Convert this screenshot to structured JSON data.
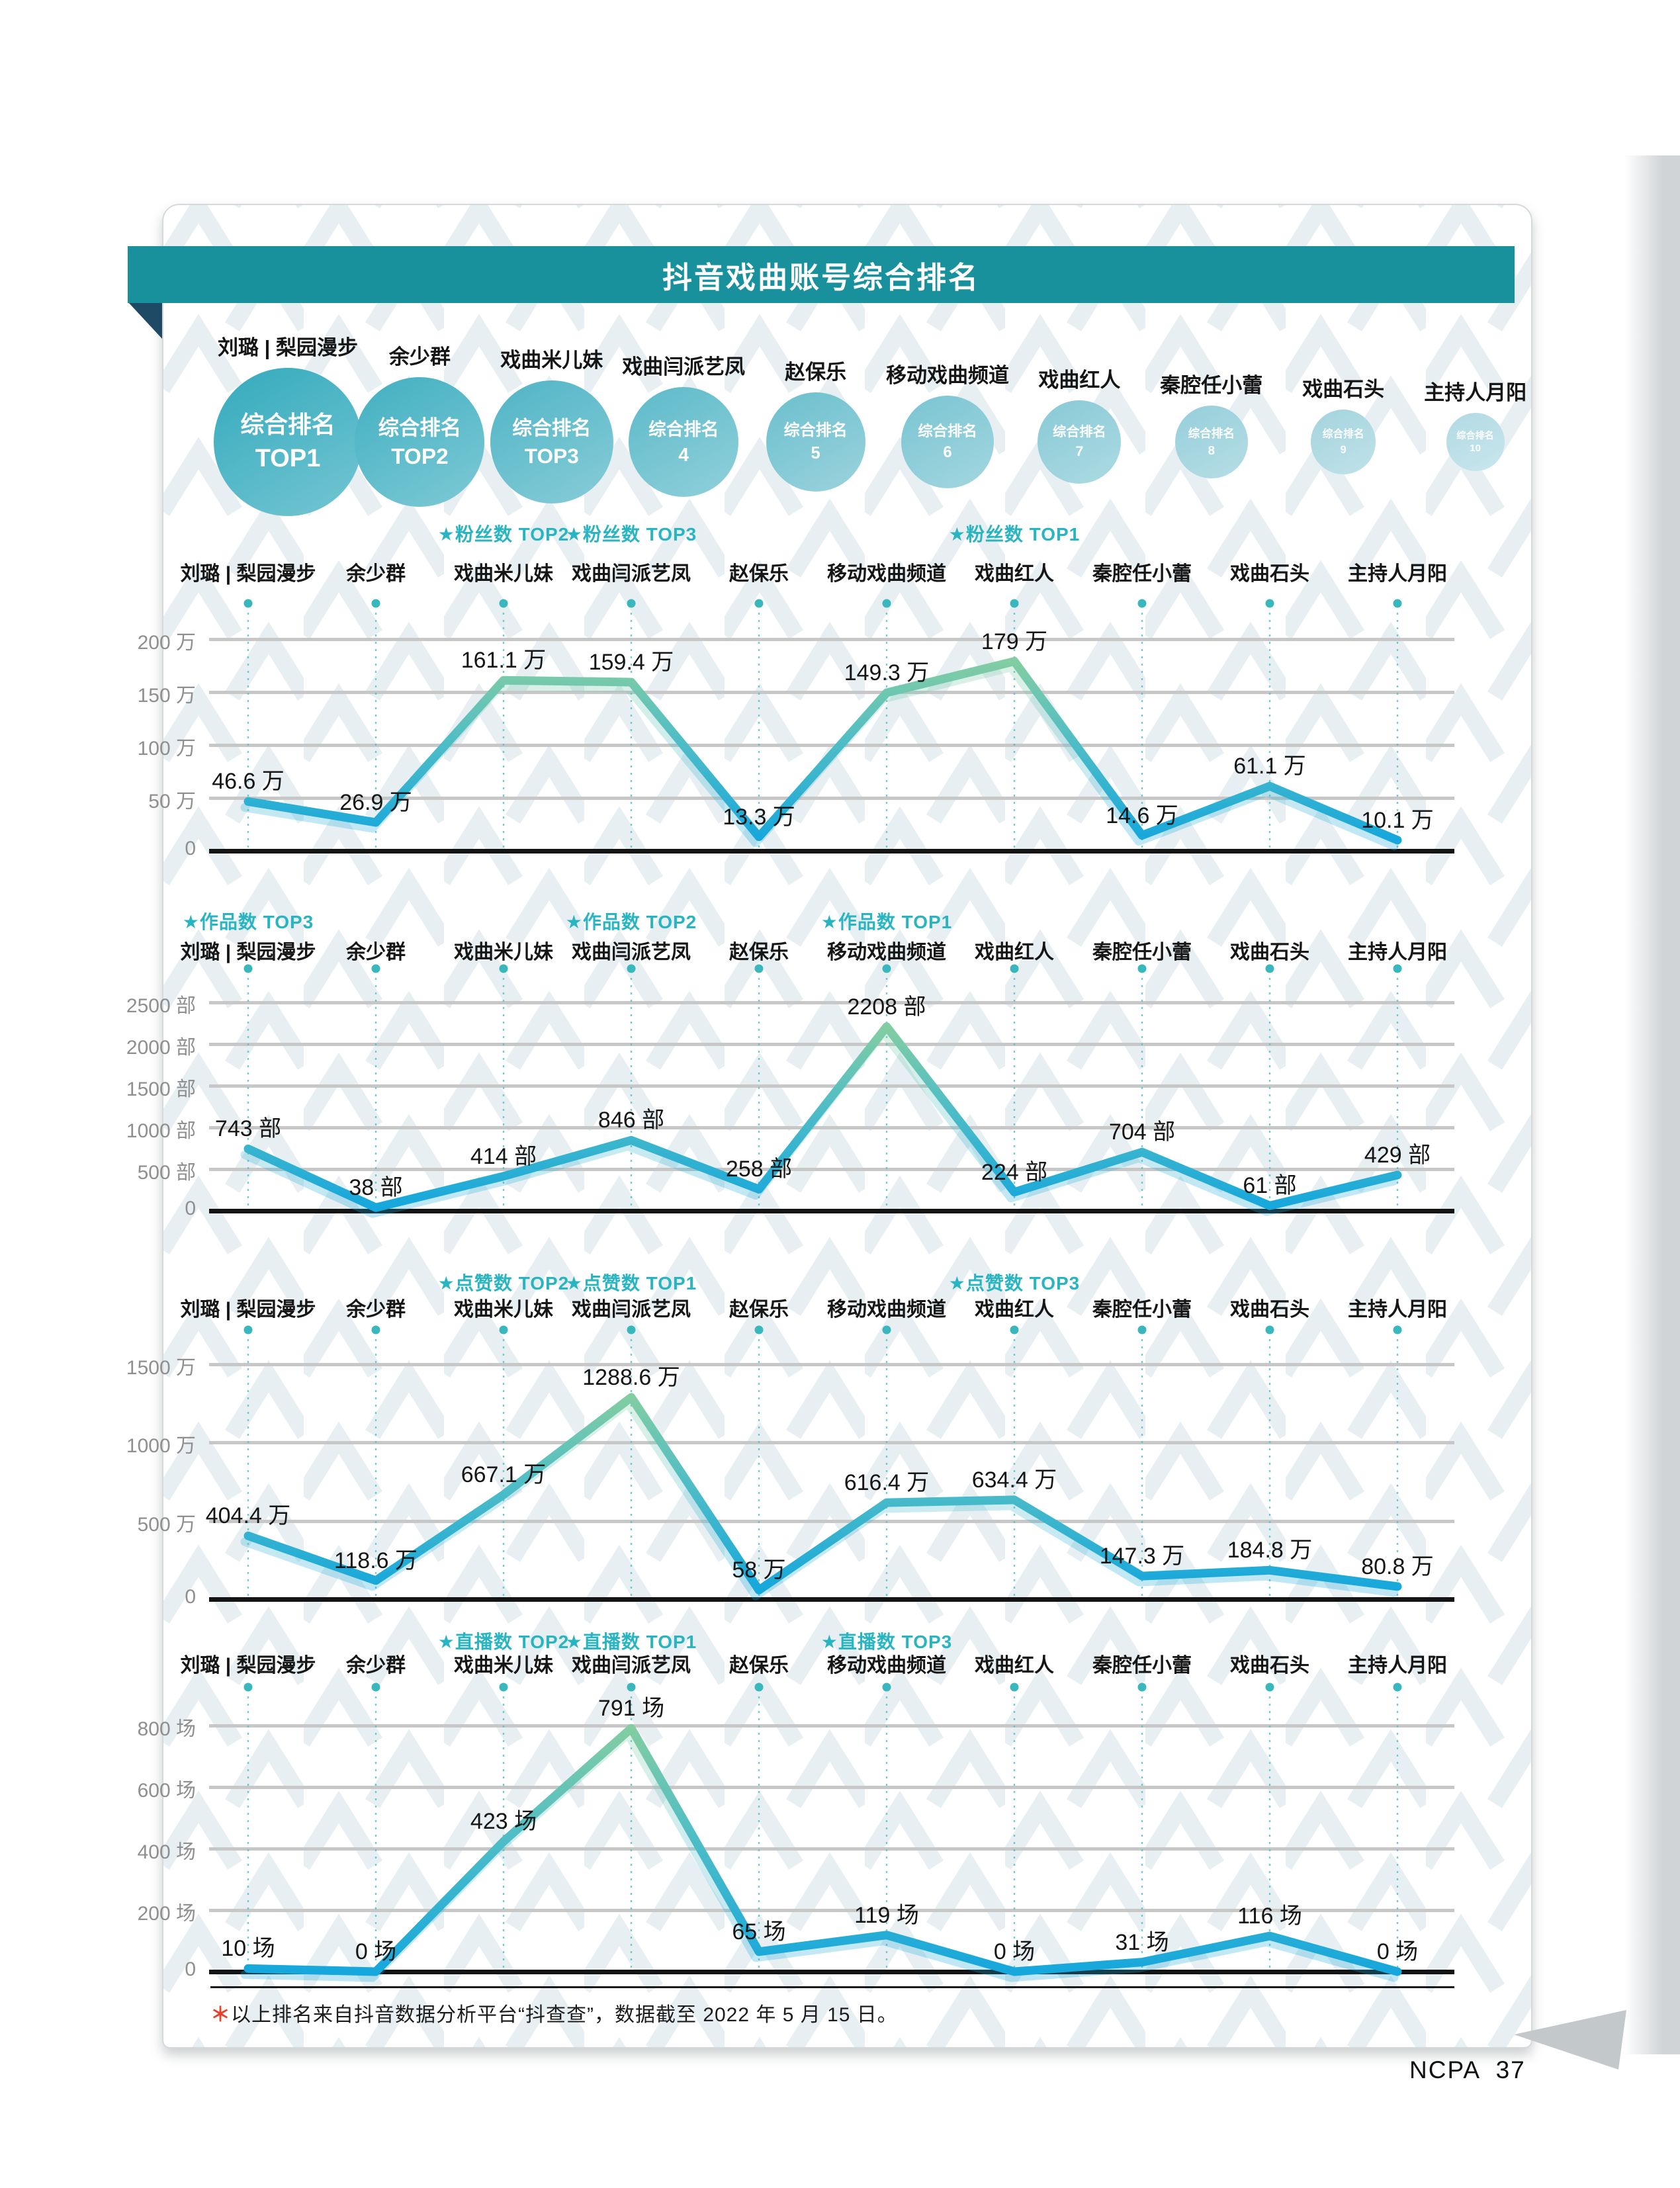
{
  "page": {
    "title": "抖音戏曲账号综合排名",
    "page_number": "NCPA  37",
    "footnote_star": "＊",
    "footnote_text": "以上排名来自抖音数据分析平台“抖查查”，数据截至 2022 年 5 月 15 日。"
  },
  "colors": {
    "header_bar": "#18919d",
    "fold": "#1f4a66",
    "accent_teal": "#29b4c2",
    "dot": "#3ab6bd",
    "dotted_line": "#52c0c6",
    "grid": "#c7c7c7",
    "baseline": "#141414",
    "axis_label": "#8f8f8f",
    "value_label": "#161616",
    "line_top": "#82cda2",
    "line_mid": "#4fbdc6",
    "line_bottom": "#16a7dc",
    "curl": "#c3c8ca"
  },
  "accounts": [
    {
      "name": "刘璐 | 梨园漫步",
      "rank_line1": "综合排名",
      "rank_line2": "TOP1",
      "circle_color": "#3aadbf"
    },
    {
      "name": "余少群",
      "rank_line1": "综合排名",
      "rank_line2": "TOP2",
      "circle_color": "#47b2c3"
    },
    {
      "name": "戏曲米儿妹",
      "rank_line1": "综合排名",
      "rank_line2": "TOP3",
      "circle_color": "#55b7c7"
    },
    {
      "name": "戏曲闫派艺凤",
      "rank_line1": "综合排名",
      "rank_line2": "4",
      "circle_color": "#62bccb"
    },
    {
      "name": "赵保乐",
      "rank_line1": "综合排名",
      "rank_line2": "5",
      "circle_color": "#70c1cf"
    },
    {
      "name": "移动戏曲频道",
      "rank_line1": "综合排名",
      "rank_line2": "6",
      "circle_color": "#7dc6d3"
    },
    {
      "name": "戏曲红人",
      "rank_line1": "综合排名",
      "rank_line2": "7",
      "circle_color": "#8bcbd7"
    },
    {
      "name": "秦腔任小蕾",
      "rank_line1": "综合排名",
      "rank_line2": "8",
      "circle_color": "#98d0db"
    },
    {
      "name": "戏曲石头",
      "rank_line1": "综合排名",
      "rank_line2": "9",
      "circle_color": "#a6d5df"
    },
    {
      "name": "主持人月阳",
      "rank_line1": "综合排名",
      "rank_line2": "10",
      "circle_color": "#b3dbe4"
    }
  ],
  "chart_data": [
    {
      "type": "line",
      "metric": "粉丝数",
      "unit": "万",
      "categories": [
        "刘璐 | 梨园漫步",
        "余少群",
        "戏曲米儿妹",
        "戏曲闫派艺凤",
        "赵保乐",
        "移动戏曲频道",
        "戏曲红人",
        "秦腔任小蕾",
        "戏曲石头",
        "主持人月阳"
      ],
      "values": [
        46.6,
        26.9,
        161.1,
        159.4,
        13.3,
        149.3,
        179,
        14.6,
        61.1,
        10.1
      ],
      "y_ticks": [
        200,
        150,
        100,
        50,
        0
      ],
      "ylim": [
        0,
        200
      ],
      "grid": true,
      "top_badges": [
        {
          "text": "★粉丝数 TOP2",
          "column": 2
        },
        {
          "text": "★粉丝数 TOP3",
          "column": 3
        },
        {
          "text": "★粉丝数 TOP1",
          "column": 6
        }
      ]
    },
    {
      "type": "line",
      "metric": "作品数",
      "unit": "部",
      "categories": [
        "刘璐 | 梨园漫步",
        "余少群",
        "戏曲米儿妹",
        "戏曲闫派艺凤",
        "赵保乐",
        "移动戏曲频道",
        "戏曲红人",
        "秦腔任小蕾",
        "戏曲石头",
        "主持人月阳"
      ],
      "values": [
        743,
        38,
        414,
        846,
        258,
        2208,
        224,
        704,
        61,
        429
      ],
      "y_ticks": [
        2500,
        2000,
        1500,
        1000,
        500,
        0
      ],
      "ylim": [
        0,
        2500
      ],
      "grid": true,
      "top_badges": [
        {
          "text": "★作品数 TOP3",
          "column": 0
        },
        {
          "text": "★作品数 TOP2",
          "column": 3
        },
        {
          "text": "★作品数 TOP1",
          "column": 5
        }
      ]
    },
    {
      "type": "line",
      "metric": "点赞数",
      "unit": "万",
      "categories": [
        "刘璐 | 梨园漫步",
        "余少群",
        "戏曲米儿妹",
        "戏曲闫派艺凤",
        "赵保乐",
        "移动戏曲频道",
        "戏曲红人",
        "秦腔任小蕾",
        "戏曲石头",
        "主持人月阳"
      ],
      "values": [
        404.4,
        118.6,
        667.1,
        1288.6,
        58,
        616.4,
        634.4,
        147.3,
        184.8,
        80.8
      ],
      "y_ticks": [
        1500,
        1000,
        500,
        0
      ],
      "ylim": [
        0,
        1500
      ],
      "grid": true,
      "top_badges": [
        {
          "text": "★点赞数 TOP2",
          "column": 2
        },
        {
          "text": "★点赞数 TOP1",
          "column": 3
        },
        {
          "text": "★点赞数 TOP3",
          "column": 6
        }
      ]
    },
    {
      "type": "line",
      "metric": "直播数",
      "unit": "场",
      "categories": [
        "刘璐 | 梨园漫步",
        "余少群",
        "戏曲米儿妹",
        "戏曲闫派艺凤",
        "赵保乐",
        "移动戏曲频道",
        "戏曲红人",
        "秦腔任小蕾",
        "戏曲石头",
        "主持人月阳"
      ],
      "values": [
        10,
        0,
        423,
        791,
        65,
        119,
        0,
        31,
        116,
        0
      ],
      "y_ticks": [
        800,
        600,
        400,
        200,
        0
      ],
      "ylim": [
        0,
        800
      ],
      "grid": true,
      "top_badges": [
        {
          "text": "★直播数 TOP2",
          "column": 2
        },
        {
          "text": "★直播数 TOP1",
          "column": 3
        },
        {
          "text": "★直播数 TOP3",
          "column": 5
        }
      ]
    }
  ]
}
